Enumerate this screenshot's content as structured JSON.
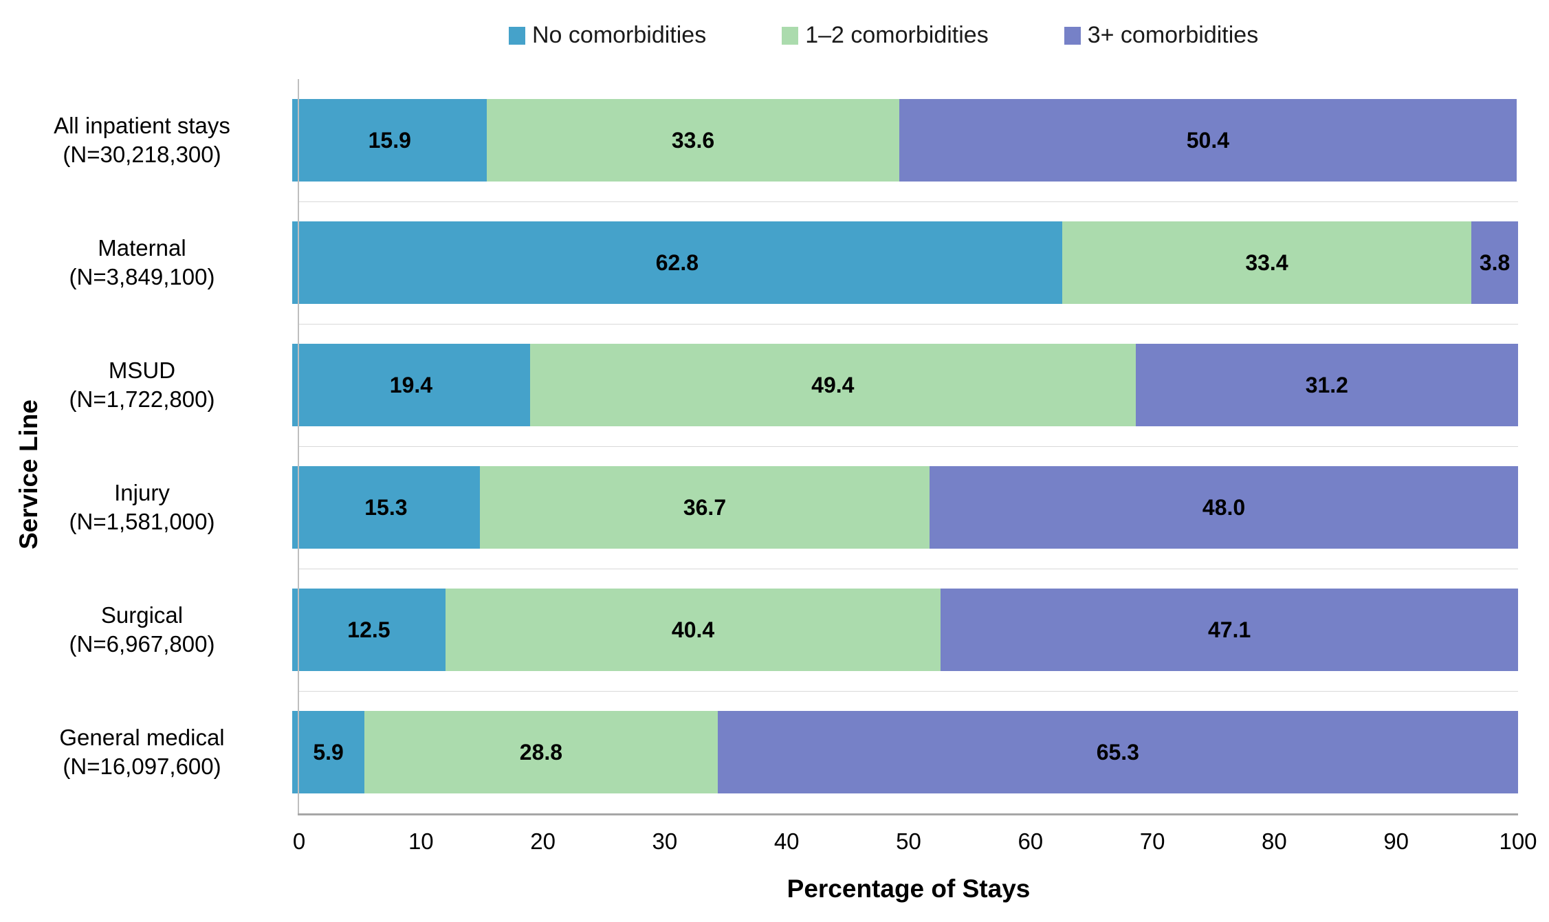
{
  "chart_data": {
    "type": "bar",
    "variant": "horizontal-stacked",
    "title": "",
    "xlabel": "Percentage of Stays",
    "ylabel": "Service Line",
    "xlim": [
      0,
      100
    ],
    "xticks": [
      0,
      10,
      20,
      30,
      40,
      50,
      60,
      70,
      80,
      90,
      100
    ],
    "grid": "row-separators",
    "legend_position": "top",
    "categories": [
      {
        "name": "All inpatient stays",
        "n": "(N=30,218,300)"
      },
      {
        "name": "Maternal",
        "n": "(N=3,849,100)"
      },
      {
        "name": "MSUD",
        "n": "(N=1,722,800)"
      },
      {
        "name": "Injury",
        "n": "(N=1,581,000)"
      },
      {
        "name": "Surgical",
        "n": "(N=6,967,800)"
      },
      {
        "name": "General medical",
        "n": "(N=16,097,600)"
      }
    ],
    "series": [
      {
        "name": "No comorbidities",
        "color": "#45A2CA",
        "values": [
          15.9,
          62.8,
          19.4,
          15.3,
          12.5,
          5.9
        ]
      },
      {
        "name": "1–2 comorbidities",
        "color": "#ABDBAD",
        "values": [
          33.6,
          33.4,
          49.4,
          36.7,
          40.4,
          28.8
        ]
      },
      {
        "name": "3+ comorbidities",
        "color": "#7681C7",
        "values": [
          50.4,
          3.8,
          31.2,
          48.0,
          47.1,
          65.3
        ]
      }
    ],
    "colors": {
      "axis_line": "#BFBFBF",
      "baseline": "#A6A6A6",
      "separator": "#D9D9D9",
      "value_label": "#000000"
    }
  }
}
